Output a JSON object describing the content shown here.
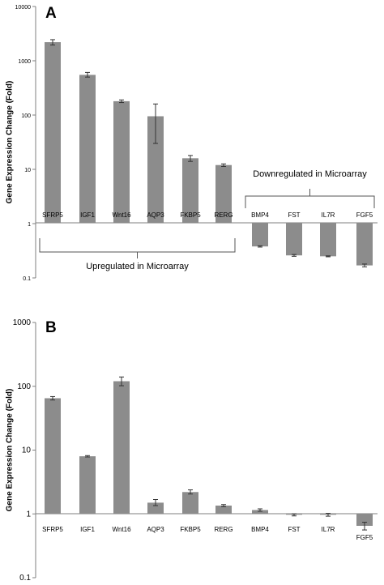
{
  "colors": {
    "bar": "#8c8c8c",
    "axis": "#7f7f7f",
    "text": "#000000"
  },
  "chart_data": [
    {
      "panel": "A",
      "type": "bar",
      "yscale": "log",
      "ylabel": "Gene Expression Change (Fold)",
      "ylim": [
        0.1,
        10000
      ],
      "yticks": [
        "0.1",
        "1",
        "10",
        "100",
        "1000",
        "10000"
      ],
      "grid": false,
      "categories": [
        "SFRP5",
        "IGF1",
        "Wnt16",
        "AQP3",
        "FKBP5",
        "RERG",
        "BMP4",
        "FST",
        "IL7R",
        "FGF5"
      ],
      "values": [
        2200,
        550,
        180,
        95,
        16,
        12,
        0.38,
        0.26,
        0.25,
        0.17
      ],
      "error_low": [
        1950,
        500,
        170,
        30,
        14,
        11.3,
        0.37,
        0.25,
        0.245,
        0.16
      ],
      "error_high": [
        2450,
        610,
        190,
        160,
        18,
        12.6,
        0.39,
        0.27,
        0.255,
        0.18
      ],
      "annotations": [
        {
          "text": "Upregulated in Microarray",
          "group": [
            0,
            5
          ]
        },
        {
          "text": "Downregulated in Microarray",
          "group": [
            6,
            9
          ]
        }
      ]
    },
    {
      "panel": "B",
      "type": "bar",
      "yscale": "log",
      "ylabel": "Gene Expression Change (Fold)",
      "ylim": [
        0.1,
        1000
      ],
      "yticks": [
        "0.1",
        "1",
        "10",
        "100",
        "1000"
      ],
      "grid": false,
      "categories": [
        "SFRP5",
        "IGF1",
        "Wnt16",
        "AQP3",
        "FKBP5",
        "RERG",
        "BMP4",
        "FST",
        "IL7R",
        "FGF5"
      ],
      "values": [
        65,
        8,
        120,
        1.5,
        2.2,
        1.35,
        1.15,
        0.97,
        0.97,
        0.65
      ],
      "error_low": [
        61,
        7.8,
        102,
        1.35,
        2.05,
        1.3,
        1.1,
        0.93,
        0.92,
        0.56
      ],
      "error_high": [
        69,
        8.2,
        140,
        1.68,
        2.38,
        1.4,
        1.2,
        1.0,
        1.02,
        0.74
      ]
    }
  ]
}
